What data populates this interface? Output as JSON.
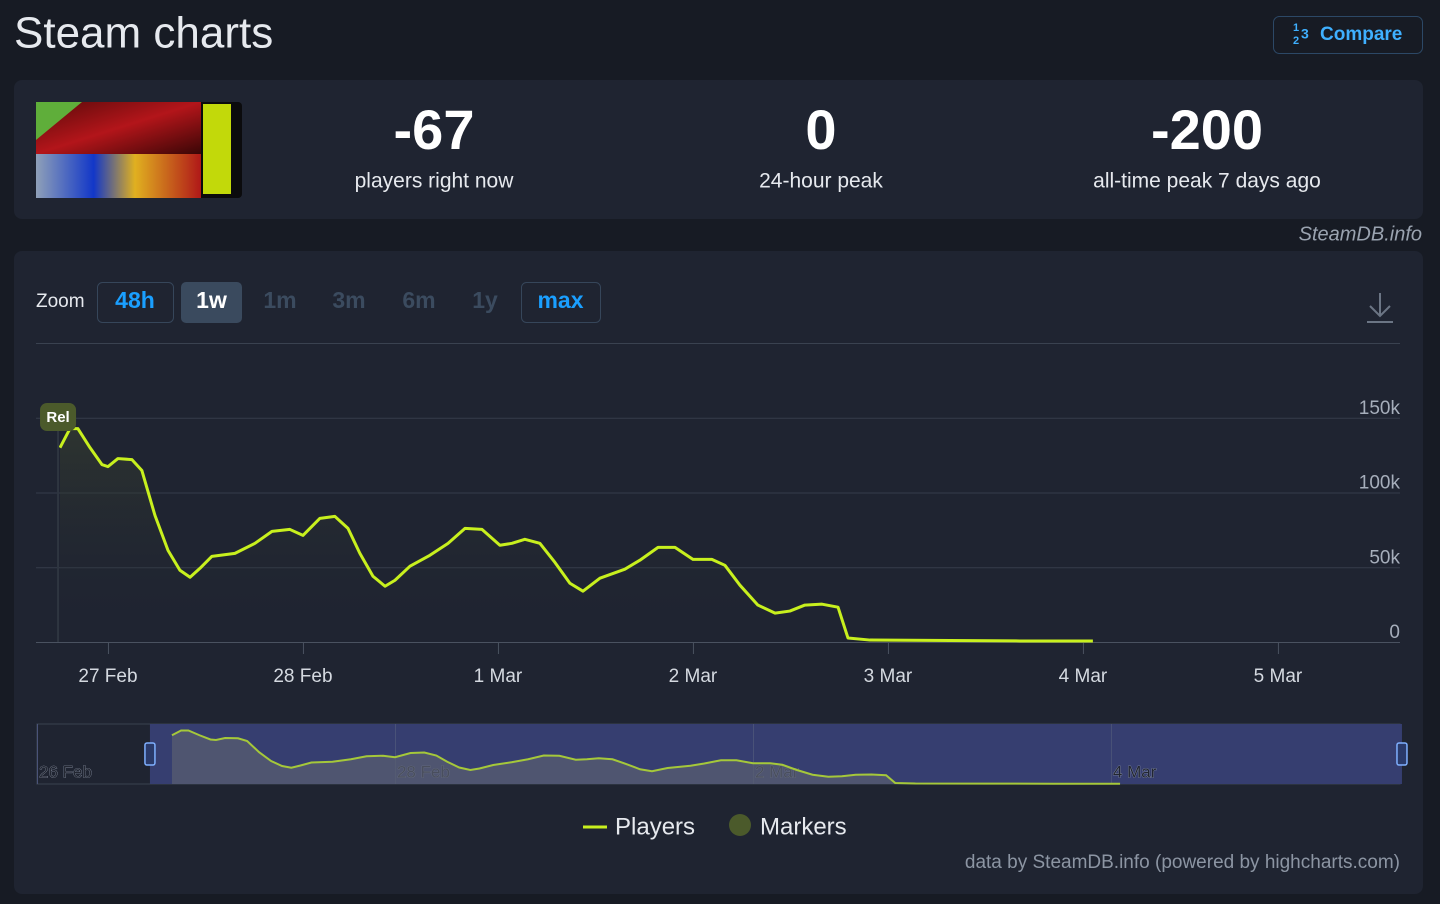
{
  "header": {
    "title": "Steam charts",
    "compare_button": "Compare"
  },
  "stats": [
    {
      "value": -67,
      "label": "players right now"
    },
    {
      "value": 0,
      "label": "24-hour peak"
    },
    {
      "value": -200,
      "label": "all-time peak 7 days ago"
    }
  ],
  "credit": "SteamDB.info",
  "zoom": {
    "label": "Zoom",
    "buttons": [
      {
        "label": "48h",
        "state": "available"
      },
      {
        "label": "1w",
        "state": "active"
      },
      {
        "label": "1m",
        "state": "disabled"
      },
      {
        "label": "3m",
        "state": "disabled"
      },
      {
        "label": "6m",
        "state": "disabled"
      },
      {
        "label": "1y",
        "state": "disabled"
      },
      {
        "label": "max",
        "state": "available"
      }
    ]
  },
  "chart_data": {
    "type": "line",
    "x": [
      0.754,
      0.805,
      0.846,
      0.908,
      0.969,
      1.0,
      1.051,
      1.123,
      1.174,
      1.241,
      1.308,
      1.369,
      1.421,
      1.472,
      1.533,
      1.651,
      1.754,
      1.841,
      1.933,
      2.0,
      2.087,
      2.164,
      2.231,
      2.292,
      2.359,
      2.421,
      2.472,
      2.549,
      2.651,
      2.744,
      2.831,
      2.918,
      3.01,
      3.072,
      3.138,
      3.215,
      3.292,
      3.369,
      3.436,
      3.523,
      3.651,
      3.728,
      3.821,
      3.908,
      4.0,
      4.097,
      4.164,
      4.241,
      4.333,
      4.421,
      4.497,
      4.574,
      4.662,
      4.744,
      4.795,
      4.908,
      5.318,
      5.677,
      6.051
    ],
    "series": [
      {
        "name": "Players",
        "color": "#c8f01e",
        "values": [
          130000,
          142700,
          142700,
          130000,
          118700,
          117300,
          122700,
          122000,
          114700,
          84700,
          61300,
          48000,
          43300,
          49300,
          57300,
          59300,
          66000,
          74000,
          75300,
          71300,
          82700,
          84000,
          76000,
          59300,
          44000,
          37300,
          41300,
          50700,
          58000,
          66000,
          76000,
          75300,
          64700,
          66000,
          68700,
          66000,
          53300,
          39300,
          34000,
          42700,
          48700,
          54700,
          63300,
          63300,
          55300,
          55300,
          51300,
          38000,
          24700,
          19300,
          20700,
          24700,
          25300,
          23300,
          2700,
          1300,
          1000,
          700,
          700
        ]
      }
    ],
    "markers": {
      "name": "Markers",
      "color": "#4b5a2b",
      "items": [
        {
          "label": "Rel",
          "x": 0.744
        }
      ]
    },
    "xlim": [
      0.631,
      7.626
    ],
    "xticks": [
      {
        "value": 1,
        "label": "27 Feb"
      },
      {
        "value": 2,
        "label": "28 Feb"
      },
      {
        "value": 3,
        "label": "1 Mar"
      },
      {
        "value": 4,
        "label": "2 Mar"
      },
      {
        "value": 5,
        "label": "3 Mar"
      },
      {
        "value": 6,
        "label": "4 Mar"
      },
      {
        "value": 7,
        "label": "5 Mar"
      }
    ],
    "ylim": [
      0,
      200000
    ],
    "yticks": [
      0,
      {
        "value": 50000,
        "label": "50k"
      },
      {
        "value": 100000,
        "label": "100k"
      },
      {
        "value": 150000,
        "label": "150k"
      }
    ],
    "grid": true,
    "navigator": {
      "xlim": [
        0,
        7.615
      ],
      "ylim": [
        0,
        160000
      ],
      "xticks": [
        {
          "value": 0,
          "label": "26 Feb"
        },
        {
          "value": 2,
          "label": "28 Feb"
        },
        {
          "value": 4,
          "label": "2 Mar"
        },
        {
          "value": 6,
          "label": "4 Mar"
        }
      ]
    },
    "footer": "data by SteamDB.info (powered by highcharts.com)"
  }
}
